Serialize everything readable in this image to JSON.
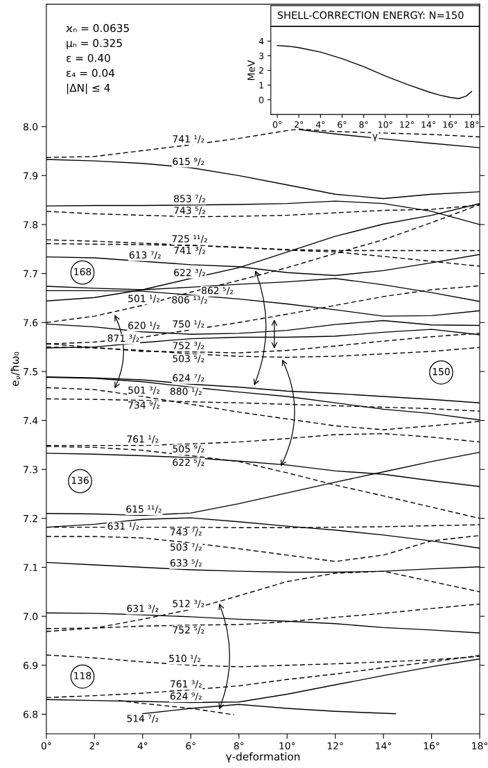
{
  "chart_data": [
    {
      "type": "line",
      "xlabel": "γ-deformation",
      "ylabel": "e$_{ν}$/ħω₀",
      "xlim": [
        0,
        18
      ],
      "ylim": [
        6.76,
        8.25
      ],
      "xticks": [
        {
          "value": 0,
          "label": "0°"
        },
        {
          "value": 2,
          "label": "2°"
        },
        {
          "value": 4,
          "label": "4°"
        },
        {
          "value": 6,
          "label": "6°"
        },
        {
          "value": 8,
          "label": "8°"
        },
        {
          "value": 10,
          "label": "10°"
        },
        {
          "value": 12,
          "label": "12°"
        },
        {
          "value": 14,
          "label": "14°"
        },
        {
          "value": 16,
          "label": "16°"
        },
        {
          "value": 18,
          "label": "18°"
        }
      ],
      "yticks": [
        6.8,
        6.9,
        {
          "value": 7,
          "label": "7.0"
        },
        7.1,
        7.2,
        7.3,
        7.4,
        7.5,
        7.6,
        7.7,
        7.8,
        7.9,
        {
          "value": 8,
          "label": "8.0"
        }
      ],
      "x": [
        0,
        2,
        4,
        6,
        8,
        10,
        12,
        14,
        16,
        18
      ],
      "series": [
        {
          "color": "#000000",
          "line_style": "dashed",
          "x": [
            0,
            2,
            4,
            6,
            8,
            10,
            10.5,
            12,
            14,
            16,
            18
          ],
          "values": [
            7.937,
            7.939,
            7.951,
            7.963,
            7.976,
            7.992,
            7.995,
            7.99,
            7.987,
            7.984,
            7.979
          ]
        },
        {
          "color": "#000000",
          "line_style": "solid",
          "values": [
            7.933,
            7.93,
            7.925,
            7.916,
            7.9,
            7.881,
            7.862,
            7.853,
            7.862,
            7.867
          ]
        },
        {
          "color": "#000000",
          "line_style": "solid",
          "x": [
            10.5,
            12,
            14,
            16,
            18
          ],
          "values": [
            7.994,
            7.985,
            7.975,
            7.966,
            7.957
          ]
        },
        {
          "color": "#000000",
          "line_style": "solid",
          "values": [
            7.838,
            7.839,
            7.839,
            7.84,
            7.841,
            7.843,
            7.848,
            7.843,
            7.827,
            7.8
          ]
        },
        {
          "color": "#000000",
          "line_style": "dashed",
          "values": [
            7.827,
            7.822,
            7.819,
            7.816,
            7.817,
            7.819,
            7.824,
            7.829,
            7.831,
            7.84
          ]
        },
        {
          "color": "#000000",
          "line_style": "dashed",
          "values": [
            7.769,
            7.766,
            7.762,
            7.758,
            7.753,
            7.749,
            7.747,
            7.747,
            7.747,
            7.747
          ]
        },
        {
          "color": "#000000",
          "line_style": "dashed",
          "values": [
            7.761,
            7.76,
            7.759,
            7.757,
            7.754,
            7.748,
            7.744,
            7.735,
            7.725,
            7.715
          ]
        },
        {
          "color": "#000000",
          "line_style": "solid",
          "values": [
            7.734,
            7.732,
            7.725,
            7.718,
            7.714,
            7.702,
            7.696,
            7.706,
            7.722,
            7.739
          ]
        },
        {
          "color": "#000000",
          "line_style": "solid",
          "values": [
            7.644,
            7.651,
            7.667,
            7.69,
            7.712,
            7.744,
            7.776,
            7.801,
            7.819,
            7.843
          ]
        },
        {
          "color": "#000000",
          "line_style": "solid",
          "values": [
            7.674,
            7.67,
            7.667,
            7.672,
            7.678,
            7.683,
            7.69,
            7.677,
            7.661,
            7.643
          ]
        },
        {
          "color": "#000000",
          "line_style": "solid",
          "values": [
            7.665,
            7.665,
            7.664,
            7.656,
            7.648,
            7.638,
            7.626,
            7.613,
            7.614,
            7.624
          ]
        },
        {
          "color": "#000000",
          "line_style": "dashed",
          "values": [
            7.6,
            7.613,
            7.635,
            7.662,
            7.686,
            7.712,
            7.741,
            7.769,
            7.804,
            7.841
          ]
        },
        {
          "color": "#000000",
          "line_style": "solid",
          "values": [
            7.597,
            7.591,
            7.581,
            7.576,
            7.578,
            7.584,
            7.596,
            7.604,
            7.595,
            7.594
          ]
        },
        {
          "color": "#000000",
          "line_style": "dashed",
          "values": [
            7.556,
            7.56,
            7.57,
            7.585,
            7.6,
            7.617,
            7.635,
            7.653,
            7.667,
            7.675
          ]
        },
        {
          "color": "#000000",
          "line_style": "solid",
          "values": [
            7.548,
            7.55,
            7.559,
            7.567,
            7.57,
            7.57,
            7.572,
            7.58,
            7.586,
            7.575
          ]
        },
        {
          "color": "#000000",
          "line_style": "dashed",
          "values": [
            7.557,
            7.549,
            7.541,
            7.54,
            7.538,
            7.543,
            7.552,
            7.562,
            7.571,
            7.578
          ]
        },
        {
          "color": "#000000",
          "line_style": "dashed",
          "values": [
            7.55,
            7.548,
            7.543,
            7.536,
            7.531,
            7.529,
            7.531,
            7.536,
            7.541,
            7.549
          ]
        },
        {
          "color": "#000000",
          "line_style": "solid",
          "values": [
            7.489,
            7.487,
            7.483,
            7.474,
            7.468,
            7.46,
            7.455,
            7.449,
            7.443,
            7.436
          ]
        },
        {
          "color": "#000000",
          "line_style": "solid",
          "values": [
            7.488,
            7.486,
            7.479,
            7.468,
            7.458,
            7.449,
            7.436,
            7.423,
            7.414,
            7.401
          ]
        },
        {
          "color": "#000000",
          "line_style": "dashed",
          "values": [
            7.467,
            7.463,
            7.449,
            7.433,
            7.417,
            7.403,
            7.389,
            7.381,
            7.389,
            7.398
          ]
        },
        {
          "color": "#000000",
          "line_style": "dashed",
          "values": [
            7.444,
            7.443,
            7.441,
            7.438,
            7.436,
            7.433,
            7.43,
            7.427,
            7.424,
            7.419
          ]
        },
        {
          "color": "#000000",
          "line_style": "dashed",
          "values": [
            7.349,
            7.349,
            7.349,
            7.352,
            7.356,
            7.363,
            7.371,
            7.373,
            7.366,
            7.356
          ]
        },
        {
          "color": "#000000",
          "line_style": "dashed",
          "values": [
            7.347,
            7.345,
            7.339,
            7.328,
            7.316,
            7.293,
            7.268,
            7.246,
            7.223,
            7.2
          ]
        },
        {
          "color": "#000000",
          "line_style": "solid",
          "values": [
            7.333,
            7.331,
            7.328,
            7.324,
            7.317,
            7.309,
            7.297,
            7.29,
            7.277,
            7.265
          ]
        },
        {
          "color": "#000000",
          "line_style": "solid",
          "values": [
            7.21,
            7.209,
            7.206,
            7.211,
            7.23,
            7.252,
            7.274,
            7.295,
            7.316,
            7.335
          ]
        },
        {
          "color": "#000000",
          "line_style": "solid",
          "values": [
            7.182,
            7.188,
            7.198,
            7.201,
            7.193,
            7.184,
            7.176,
            7.166,
            7.154,
            7.139
          ]
        },
        {
          "color": "#000000",
          "line_style": "dashed",
          "values": [
            7.182,
            7.182,
            7.182,
            7.182,
            7.181,
            7.181,
            7.182,
            7.183,
            7.185,
            7.187
          ]
        },
        {
          "color": "#000000",
          "line_style": "dashed",
          "values": [
            7.163,
            7.163,
            7.16,
            7.15,
            7.138,
            7.125,
            7.112,
            7.125,
            7.154,
            7.165
          ]
        },
        {
          "color": "#000000",
          "line_style": "solid",
          "values": [
            7.11,
            7.105,
            7.1,
            7.095,
            7.092,
            7.09,
            7.09,
            7.092,
            7.097,
            7.101
          ]
        },
        {
          "color": "#000000",
          "line_style": "dashed",
          "values": [
            6.975,
            6.976,
            6.994,
            7.014,
            7.042,
            7.071,
            7.088,
            7.092,
            7.071,
            7.05
          ]
        },
        {
          "color": "#000000",
          "line_style": "solid",
          "values": [
            7.007,
            7.006,
            7.003,
            6.999,
            6.994,
            6.99,
            6.985,
            6.977,
            6.972,
            6.966
          ]
        },
        {
          "color": "#000000",
          "line_style": "dashed",
          "values": [
            6.969,
            6.976,
            6.98,
            6.982,
            6.983,
            6.989,
            6.998,
            7.006,
            7.016,
            7.025
          ]
        },
        {
          "color": "#000000",
          "line_style": "dashed",
          "values": [
            6.921,
            6.915,
            6.907,
            6.9,
            6.897,
            6.9,
            6.903,
            6.907,
            6.911,
            6.918
          ]
        },
        {
          "color": "#000000",
          "line_style": "dashed",
          "values": [
            6.834,
            6.838,
            6.843,
            6.85,
            6.858,
            6.871,
            6.882,
            6.895,
            6.907,
            6.92
          ]
        },
        {
          "color": "#000000",
          "line_style": "solid",
          "values": [
            6.83,
            6.828,
            6.826,
            6.824,
            6.825,
            6.841,
            6.86,
            6.879,
            6.897,
            6.913
          ]
        },
        {
          "color": "#000000",
          "line_style": "solid",
          "x": [
            4,
            6,
            8,
            10,
            12,
            14,
            14.5
          ],
          "values": [
            6.801,
            6.812,
            6.82,
            6.812,
            6.806,
            6.802,
            6.801
          ]
        },
        {
          "color": "#000000",
          "line_style": "dashed",
          "x": [
            3,
            4,
            6,
            7.8
          ],
          "values": [
            6.828,
            6.822,
            6.812,
            6.799
          ]
        }
      ],
      "annotations": [
        "ϰₙ = 0.0635",
        "μₙ = 0.325",
        "ε = 0.40",
        "ε₄ = 0.04",
        "|ΔN| ≤ 4",
        {
          "text": "741 ¹/₂",
          "x": 5.9,
          "y": 7.962
        },
        {
          "text": "615 ⁹/₂",
          "x": 5.9,
          "y": 7.916
        },
        {
          "text": "853 ⁷/₂",
          "x": 5.95,
          "y": 7.84
        },
        {
          "text": "743 ⁵/₂",
          "x": 5.95,
          "y": 7.816
        },
        {
          "text": "725 ¹¹/₂",
          "x": 5.95,
          "y": 7.758
        },
        {
          "text": "741 ³/₂",
          "x": 5.95,
          "y": 7.757
        },
        {
          "text": "613 ⁷/₂",
          "x": 4.1,
          "y": 7.725
        },
        {
          "text": "622 ³/₂",
          "x": 5.95,
          "y": 7.689
        },
        {
          "text": "862 ⁵/₂",
          "x": 7.1,
          "y": 7.675
        },
        {
          "text": "501 ¹/₂",
          "x": 4.05,
          "y": 7.636
        },
        {
          "text": "806 ¹³/₂",
          "x": 5.95,
          "y": 7.656
        },
        {
          "text": "620 ¹/₂",
          "x": 4.05,
          "y": 7.581
        },
        {
          "text": "750 ¹/₂",
          "x": 5.9,
          "y": 7.584
        },
        {
          "text": "871 ³/₂",
          "x": 3.2,
          "y": 7.555
        },
        {
          "text": "752 ³/₂",
          "x": 5.9,
          "y": 7.54
        },
        {
          "text": "503 ⁵/₂",
          "x": 5.9,
          "y": 7.536
        },
        {
          "text": "624 ⁷/₂",
          "x": 5.9,
          "y": 7.474
        },
        {
          "text": "501 ³/₂",
          "x": 4.05,
          "y": 7.449
        },
        {
          "text": "880 ¹/₂",
          "x": 5.8,
          "y": 7.469
        },
        {
          "text": "734 ⁹/₂",
          "x": 4.05,
          "y": 7.441
        },
        {
          "text": "761 ¹/₂",
          "x": 4.0,
          "y": 7.349
        },
        {
          "text": "505 ⁹/₂",
          "x": 5.9,
          "y": 7.329
        },
        {
          "text": "622 ⁵/₂",
          "x": 5.9,
          "y": 7.324
        },
        {
          "text": "615 ¹¹/₂",
          "x": 4.05,
          "y": 7.206
        },
        {
          "text": "631 ¹/₂",
          "x": 3.2,
          "y": 7.194
        },
        {
          "text": "743 ⁷/₂",
          "x": 5.8,
          "y": 7.182
        },
        {
          "text": "503 ⁷/₂",
          "x": 5.8,
          "y": 7.151
        },
        {
          "text": "633 ⁵/₂",
          "x": 5.8,
          "y": 7.096
        },
        {
          "text": "631 ³/₂",
          "x": 4.0,
          "y": 7.003
        },
        {
          "text": "512 ³/₂",
          "x": 5.9,
          "y": 7.013
        },
        {
          "text": "752 ⁵/₂",
          "x": 5.9,
          "y": 6.982
        },
        {
          "text": "510 ¹/₂",
          "x": 5.75,
          "y": 6.901
        },
        {
          "text": "761 ³/₂",
          "x": 5.8,
          "y": 6.849
        },
        {
          "text": "624 ⁹/₂",
          "x": 5.8,
          "y": 6.824
        },
        {
          "text": "514 ⁷/₂",
          "x": 4.0,
          "y": 6.801
        },
        {
          "text": "168",
          "x": 1.5,
          "y": 7.702
        },
        {
          "text": "136",
          "x": 1.4,
          "y": 7.276
        },
        {
          "text": "118",
          "x": 1.5,
          "y": 6.877
        },
        {
          "text": "150",
          "x": 16.4,
          "y": 7.498
        }
      ]
    },
    {
      "type": "line",
      "title": "SHELL-CORRECTION ENERGY: N=150",
      "xlabel": "γ",
      "ylabel": "MeV",
      "xlim": [
        -0.6,
        18.7
      ],
      "ylim": [
        -1,
        5
      ],
      "xticks": [
        {
          "value": 0,
          "label": "0°"
        },
        {
          "value": 2,
          "label": "2°"
        },
        {
          "value": 4,
          "label": "4°"
        },
        {
          "value": 6,
          "label": "6°"
        },
        {
          "value": 8,
          "label": "8°"
        },
        {
          "value": 10,
          "label": "10°"
        },
        {
          "value": 12,
          "label": "12°"
        },
        {
          "value": 14,
          "label": "14°"
        },
        {
          "value": 16,
          "label": "16°"
        },
        {
          "value": 18,
          "label": "18°"
        }
      ],
      "yticks": [
        0,
        1,
        2,
        3,
        4
      ],
      "series": [
        {
          "color": "#000000",
          "line_style": "solid",
          "x": [
            0,
            1,
            2,
            4,
            6,
            8,
            10,
            12,
            14,
            15,
            16,
            16.8,
            17.5,
            18
          ],
          "values": [
            3.7,
            3.65,
            3.55,
            3.25,
            2.8,
            2.26,
            1.62,
            1.05,
            0.54,
            0.32,
            0.16,
            0.08,
            0.25,
            0.57
          ]
        }
      ]
    }
  ]
}
